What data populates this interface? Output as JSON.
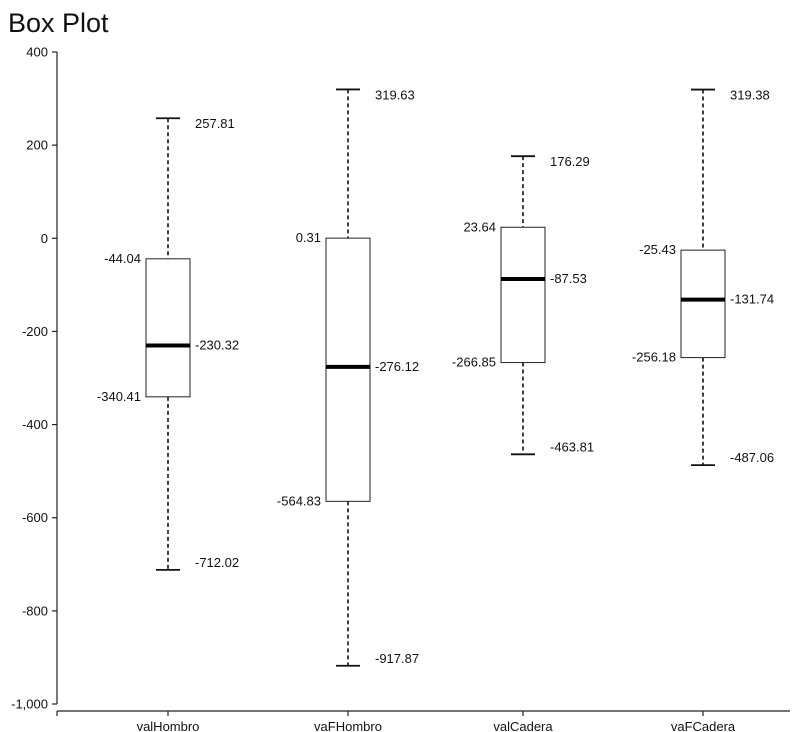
{
  "chart_data": {
    "type": "box",
    "title": "Box Plot",
    "xlabel": "",
    "ylabel": "",
    "ylim": [
      -1000,
      400
    ],
    "y_ticks": [
      400,
      200,
      0,
      -200,
      -400,
      -600,
      -800,
      -1000
    ],
    "y_tick_labels": [
      "400",
      "200",
      "0",
      "-200",
      "-400",
      "-600",
      "-800",
      "-1,000"
    ],
    "categories": [
      "valHombro",
      "vaFHombro",
      "valCadera",
      "vaFCadera"
    ],
    "boxes": [
      {
        "category": "valHombro",
        "max": 257.81,
        "q3": -44.04,
        "median": -230.32,
        "q1": -340.41,
        "min": -712.02,
        "labels": {
          "max": "257.81",
          "q3": "-44.04",
          "median": "-230.32",
          "q1": "-340.41",
          "min": "-712.02"
        }
      },
      {
        "category": "vaFHombro",
        "max": 319.63,
        "q3": 0.31,
        "median": -276.12,
        "q1": -564.83,
        "min": -917.87,
        "labels": {
          "max": "319.63",
          "q3": "0.31",
          "median": "-276.12",
          "q1": "-564.83",
          "min": "-917.87"
        }
      },
      {
        "category": "valCadera",
        "max": 176.29,
        "q3": 23.64,
        "median": -87.53,
        "q1": -266.85,
        "min": -463.81,
        "labels": {
          "max": "176.29",
          "q3": "23.64",
          "median": "-87.53",
          "q1": "-266.85",
          "min": "-463.81"
        }
      },
      {
        "category": "vaFCadera",
        "max": 319.38,
        "q3": -25.43,
        "median": -131.74,
        "q1": -256.18,
        "min": -487.06,
        "labels": {
          "max": "319.38",
          "q3": "-25.43",
          "median": "-131.74",
          "q1": "-256.18",
          "min": "-487.06"
        }
      }
    ],
    "grid": false,
    "legend": "none"
  }
}
